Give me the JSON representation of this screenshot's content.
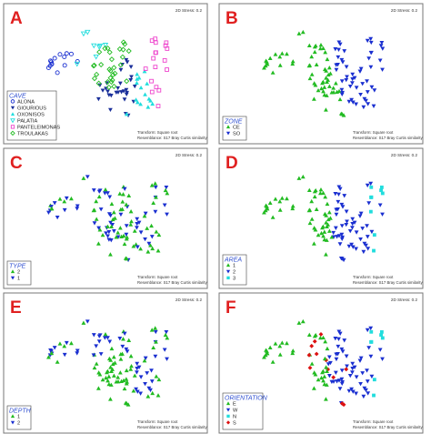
{
  "colors": {
    "letter": "#e02020",
    "legend_title": "#2f4fd0",
    "green": "#22bb22",
    "blue": "#1a2fd0",
    "cyan": "#22dddd",
    "red": "#dd1111",
    "magenta": "#ee44cc",
    "navy": "#1a2f9a"
  },
  "chart_data": [
    {
      "type": "scatter",
      "letter": "A",
      "stress_label": "2D Stress: 0.2",
      "transform_label": "Transform: Square root",
      "resemblance_label": "Resemblance: S17 Bray Curtis similarity",
      "legend": {
        "title": "CAVE",
        "placement": "bottom-left",
        "entries": [
          {
            "label": "ALONA",
            "marker": "circle-open",
            "color": "#1a2fd0"
          },
          {
            "label": "GIOURIOUS",
            "marker": "triangle-down",
            "color": "#1a2f9a"
          },
          {
            "label": "OXONISOS",
            "marker": "triangle-up",
            "color": "#22dddd"
          },
          {
            "label": "PALATIA",
            "marker": "triangle-down-open",
            "color": "#22dddd"
          },
          {
            "label": "PANTELEIMONAS",
            "marker": "square-open",
            "color": "#ee44cc"
          },
          {
            "label": "TROULAKAS",
            "marker": "diamond-open",
            "color": "#22bb22"
          }
        ]
      }
    },
    {
      "type": "scatter",
      "letter": "B",
      "stress_label": "2D Stress: 0.2",
      "transform_label": "Transform: Square root",
      "resemblance_label": "Resemblance: S17 Bray Curtis similarity",
      "legend": {
        "title": "ZONE",
        "placement": "bottom-left",
        "entries": [
          {
            "label": "CE",
            "marker": "triangle-up",
            "color": "#22bb22"
          },
          {
            "label": "SO",
            "marker": "triangle-down",
            "color": "#1a2fd0"
          }
        ]
      }
    },
    {
      "type": "scatter",
      "letter": "C",
      "stress_label": "2D Stress: 0.2",
      "transform_label": "Transform: Square root",
      "resemblance_label": "Resemblance: S17 Bray Curtis similarity",
      "legend": {
        "title": "TYPE",
        "placement": "bottom-left",
        "entries": [
          {
            "label": "2",
            "marker": "triangle-up",
            "color": "#22bb22"
          },
          {
            "label": "1",
            "marker": "triangle-down",
            "color": "#1a2fd0"
          }
        ]
      }
    },
    {
      "type": "scatter",
      "letter": "D",
      "stress_label": "2D Stress: 0.2",
      "transform_label": "Transform: Square root",
      "resemblance_label": "Resemblance: S17 Bray Curtis similarity",
      "legend": {
        "title": "AREA",
        "placement": "bottom-left",
        "entries": [
          {
            "label": "1",
            "marker": "triangle-up",
            "color": "#22bb22"
          },
          {
            "label": "2",
            "marker": "triangle-down",
            "color": "#1a2fd0"
          },
          {
            "label": "3",
            "marker": "square",
            "color": "#22dddd"
          }
        ]
      }
    },
    {
      "type": "scatter",
      "letter": "E",
      "stress_label": "2D Stress: 0.2",
      "transform_label": "Transform: Square root",
      "resemblance_label": "Resemblance: S17 Bray Curtis similarity",
      "legend": {
        "title": "DEPTH",
        "placement": "bottom-left",
        "entries": [
          {
            "label": "1",
            "marker": "triangle-up",
            "color": "#22bb22"
          },
          {
            "label": "2",
            "marker": "triangle-down",
            "color": "#1a2fd0"
          }
        ]
      }
    },
    {
      "type": "scatter",
      "letter": "F",
      "stress_label": "2D Stress: 0.2",
      "transform_label": "Transform: Square root",
      "resemblance_label": "Resemblance: S17 Bray Curtis similarity",
      "legend": {
        "title": "ORIENTATION",
        "placement": "bottom-left",
        "entries": [
          {
            "label": "E",
            "marker": "triangle-up",
            "color": "#22bb22"
          },
          {
            "label": "W",
            "marker": "triangle-down",
            "color": "#1a2fd0"
          },
          {
            "label": "N",
            "marker": "square",
            "color": "#22dddd"
          },
          {
            "label": "S",
            "marker": "diamond",
            "color": "#dd1111"
          }
        ]
      }
    }
  ]
}
